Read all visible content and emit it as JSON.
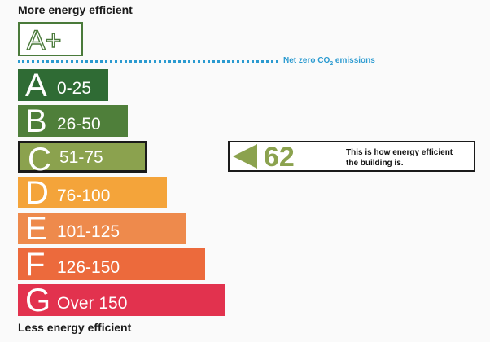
{
  "top_label": "More energy efficient",
  "bottom_label": "Less energy efficient",
  "top_rating": {
    "label": "A+",
    "color": "#4a7a3a"
  },
  "net_zero": {
    "prefix": "Net zero CO",
    "sub": "2",
    "suffix": " emissions",
    "color": "#2a9ad0"
  },
  "bands": [
    {
      "letter": "A",
      "range": "0-25",
      "color": "#2f6b34"
    },
    {
      "letter": "B",
      "range": "26-50",
      "color": "#4f7f3a"
    },
    {
      "letter": "C",
      "range": "51-75",
      "color": "#8ba24e",
      "selected": true
    },
    {
      "letter": "D",
      "range": "76-100",
      "color": "#f4a43a"
    },
    {
      "letter": "E",
      "range": "101-125",
      "color": "#ee8a4c"
    },
    {
      "letter": "F",
      "range": "126-150",
      "color": "#ec6a3c"
    },
    {
      "letter": "G",
      "range": "Over 150",
      "color": "#e2324e"
    }
  ],
  "indicator": {
    "value": "62",
    "text_line1": "This is how energy efficient",
    "text_line2": "the building is."
  }
}
